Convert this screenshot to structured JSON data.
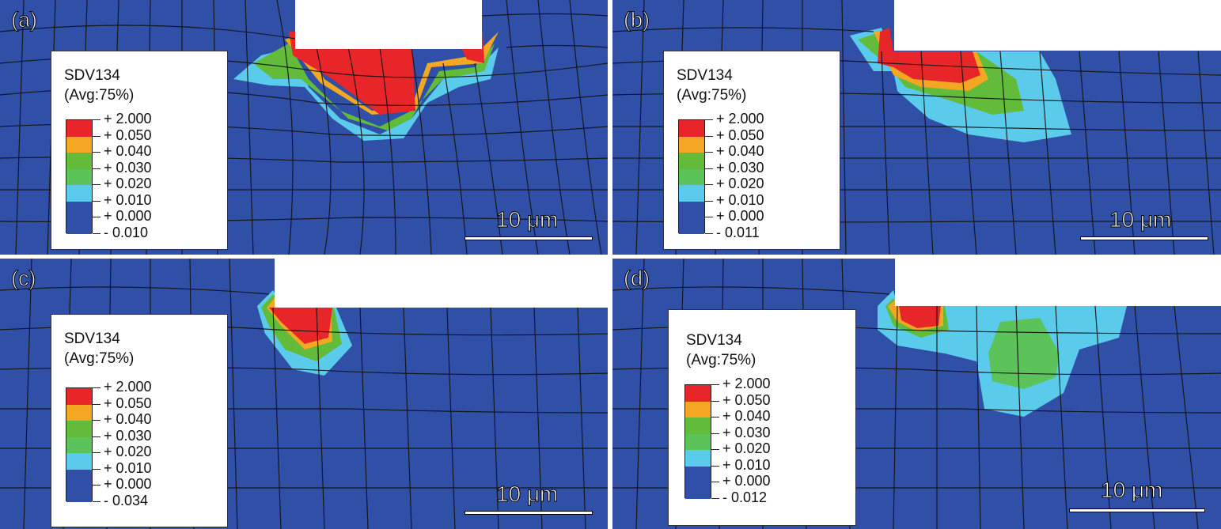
{
  "colors": {
    "background_blue": "#3050a8",
    "band_red": "#e8262a",
    "band_orange": "#f3a722",
    "band_green": "#62bc3a",
    "band_lightgreen": "#5cc25a",
    "band_cyan": "#5bcbeb",
    "band_blue": "#3050a8",
    "mesh_line": "#111111"
  },
  "panels": [
    {
      "label": "(a)",
      "legend": {
        "title": "SDV134",
        "subtitle": "(Avg:75%)",
        "values": [
          "+ 2.000",
          "+ 0.050",
          "+ 0.040",
          "+ 0.030",
          "+ 0.020",
          "+ 0.010",
          "+ 0.000",
          "- 0.010"
        ]
      },
      "scale_label": "10 μm"
    },
    {
      "label": "(b)",
      "legend": {
        "title": "SDV134",
        "subtitle": "(Avg:75%)",
        "values": [
          "+ 2.000",
          "+ 0.050",
          "+ 0.040",
          "+ 0.030",
          "+ 0.020",
          "+ 0.010",
          "+ 0.000",
          "- 0.011"
        ]
      },
      "scale_label": "10 μm"
    },
    {
      "label": "(c)",
      "legend": {
        "title": "SDV134",
        "subtitle": "(Avg:75%)",
        "values": [
          "+ 2.000",
          "+ 0.050",
          "+ 0.040",
          "+ 0.030",
          "+ 0.020",
          "+ 0.010",
          "+ 0.000",
          "- 0.034"
        ]
      },
      "scale_label": "10 μm"
    },
    {
      "label": "(d)",
      "legend": {
        "title": "SDV134",
        "subtitle": "(Avg:75%)",
        "values": [
          "+ 2.000",
          "+ 0.050",
          "+ 0.040",
          "+ 0.030",
          "+ 0.020",
          "+ 0.010",
          "+ 0.000",
          "- 0.012"
        ]
      },
      "scale_label": "10 μm"
    }
  ],
  "legend_swatch_colors": [
    "#e8262a",
    "#f3a722",
    "#62bc3a",
    "#5cc25a",
    "#5bcbeb",
    "#3050a8",
    "#3050a8"
  ]
}
